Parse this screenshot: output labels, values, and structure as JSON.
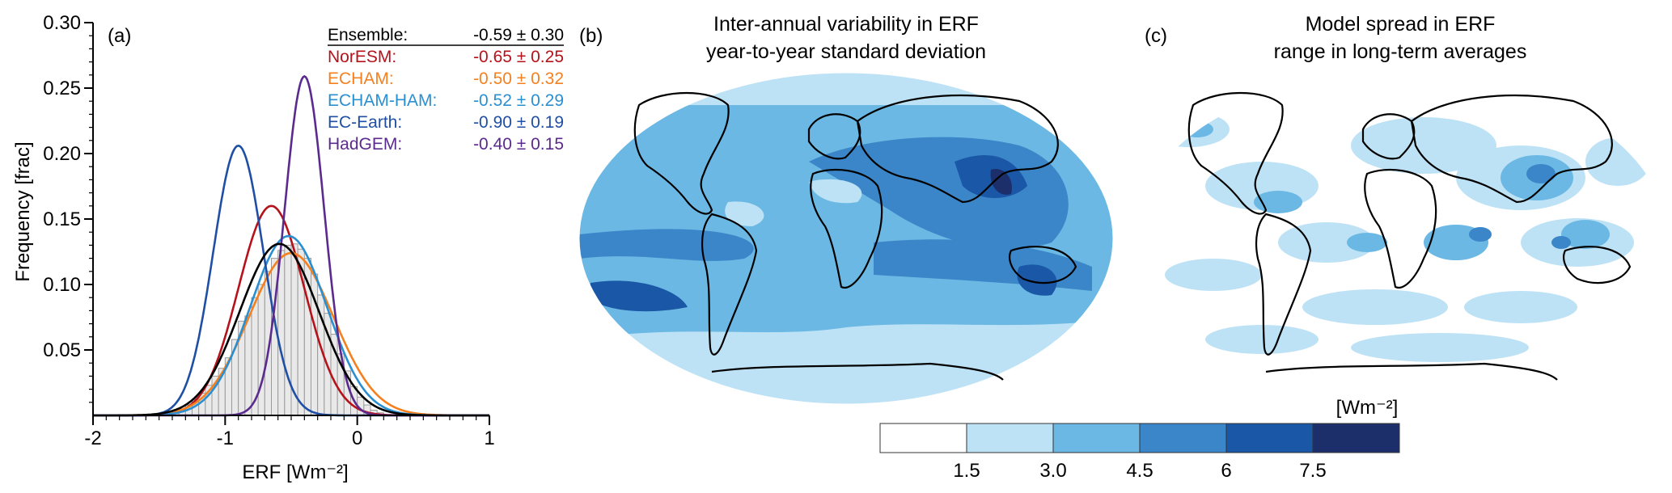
{
  "panel_a": {
    "label": "(a)",
    "chart_data": {
      "type": "line",
      "xlabel": "ERF [Wm⁻²]",
      "ylabel": "Frequency [frac]",
      "xlim": [
        -2,
        1
      ],
      "ylim": [
        0,
        0.3
      ],
      "xticks": [
        -2,
        -1,
        0,
        1
      ],
      "xtick_labels": [
        "-2",
        "-1",
        "0",
        "1"
      ],
      "yticks": [
        0.05,
        0.1,
        0.15,
        0.2,
        0.25,
        0.3
      ],
      "ytick_labels": [
        "0.05",
        "0.10",
        "0.15",
        "0.20",
        "0.25",
        "0.30"
      ],
      "series": [
        {
          "name": "Ensemble:",
          "stat": "-0.59 ± 0.30",
          "mean": -0.59,
          "sd": 0.3,
          "peak": 0.131,
          "color": "#000000"
        },
        {
          "name": "NorESM:",
          "stat": "-0.65 ± 0.25",
          "mean": -0.65,
          "sd": 0.25,
          "peak": 0.16,
          "color": "#b5121b"
        },
        {
          "name": "ECHAM:",
          "stat": "-0.50 ± 0.32",
          "mean": -0.5,
          "sd": 0.32,
          "peak": 0.124,
          "color": "#f4801f"
        },
        {
          "name": "ECHAM-HAM:",
          "stat": "-0.52 ± 0.29",
          "mean": -0.52,
          "sd": 0.29,
          "peak": 0.137,
          "color": "#2a8fd1"
        },
        {
          "name": "EC-Earth:",
          "stat": "-0.90 ± 0.19",
          "mean": -0.9,
          "sd": 0.19,
          "peak": 0.206,
          "color": "#1f4fa5"
        },
        {
          "name": "HadGEM:",
          "stat": "-0.40 ± 0.15",
          "mean": -0.4,
          "sd": 0.15,
          "peak": 0.259,
          "color": "#5b2a8e"
        }
      ],
      "histogram": {
        "bin_start": -1.5,
        "bin_width": 0.05,
        "values": [
          0.001,
          0.002,
          0.003,
          0.005,
          0.008,
          0.012,
          0.017,
          0.023,
          0.03,
          0.036,
          0.044,
          0.058,
          0.072,
          0.076,
          0.09,
          0.1,
          0.11,
          0.12,
          0.126,
          0.13,
          0.131,
          0.127,
          0.12,
          0.108,
          0.092,
          0.078,
          0.062,
          0.047,
          0.034,
          0.022,
          0.014,
          0.008,
          0.004,
          0.002
        ]
      }
    }
  },
  "panel_b": {
    "label": "(b)",
    "title_line1": "Inter-annual variability in ERF",
    "title_line2": "year-to-year standard deviation"
  },
  "panel_c": {
    "label": "(c)",
    "title_line1": "Model spread in ERF",
    "title_line2": "range in long-term averages"
  },
  "colorbar": {
    "unit": "[Wm⁻²]",
    "tick_labels": [
      "1.5",
      "3.0",
      "4.5",
      "6",
      "7.5"
    ],
    "colors": [
      "#ffffff",
      "#bde2f5",
      "#6bb8e4",
      "#3b86c8",
      "#1a57a6",
      "#1d2f6b"
    ]
  }
}
